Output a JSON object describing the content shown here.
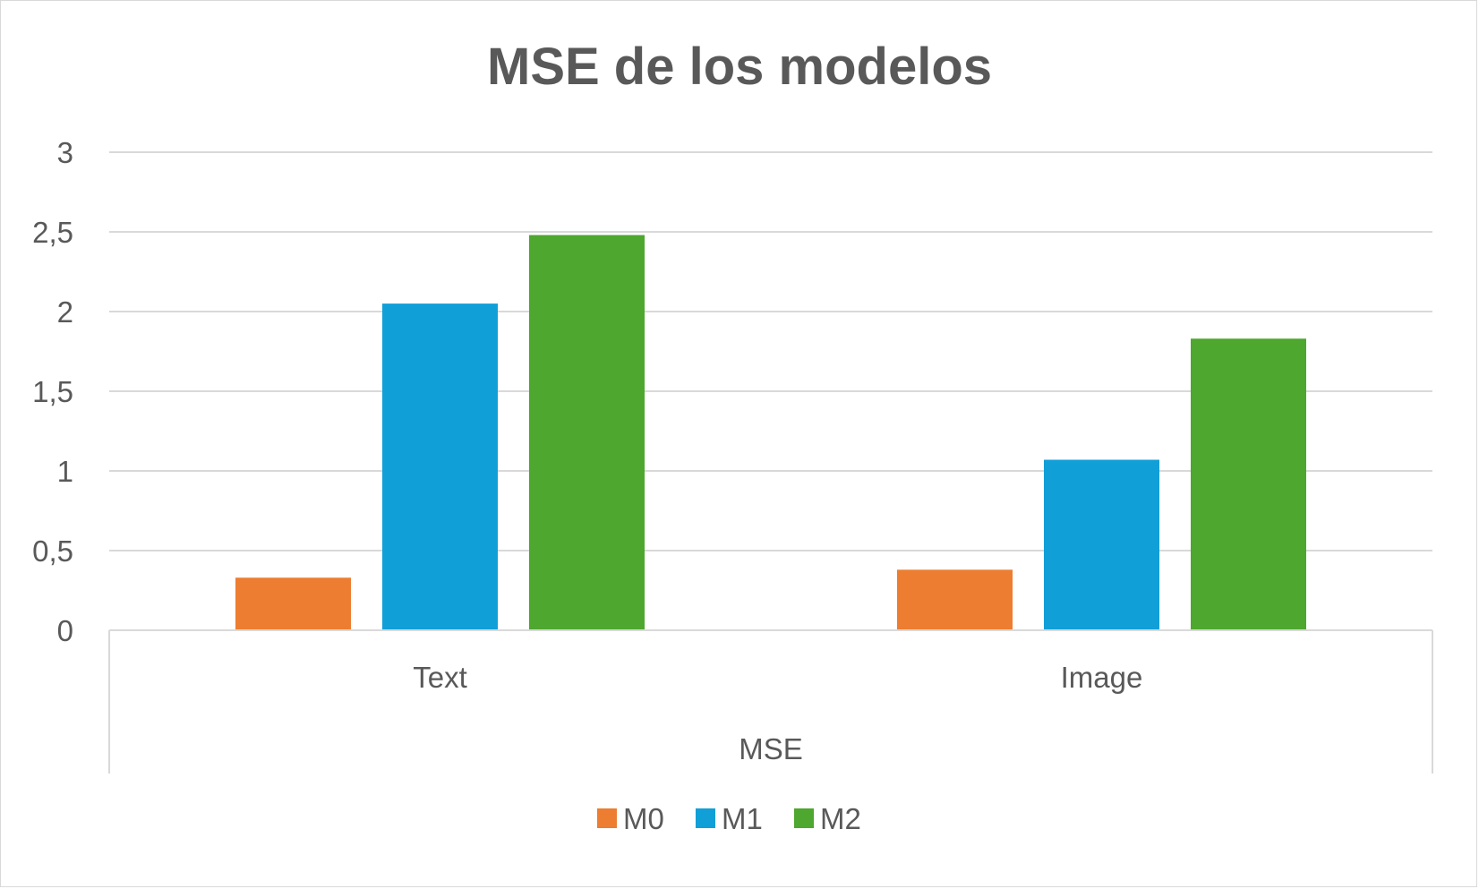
{
  "chart_data": {
    "type": "bar",
    "title": "MSE de los modelos",
    "group_label": "MSE",
    "categories": [
      "Text",
      "Image"
    ],
    "series": [
      {
        "name": "M0",
        "color": "#ED7D31",
        "values": [
          0.33,
          0.38
        ]
      },
      {
        "name": "M1",
        "color": "#119FD8",
        "values": [
          2.05,
          1.07
        ]
      },
      {
        "name": "M2",
        "color": "#4EA72E",
        "values": [
          2.48,
          1.83
        ]
      }
    ],
    "ylim": [
      0,
      3
    ],
    "yticks": [
      {
        "value": 0,
        "label": "0"
      },
      {
        "value": 0.5,
        "label": "0,5"
      },
      {
        "value": 1,
        "label": "1"
      },
      {
        "value": 1.5,
        "label": "1,5"
      },
      {
        "value": 2,
        "label": "2"
      },
      {
        "value": 2.5,
        "label": "2,5"
      },
      {
        "value": 3,
        "label": "3"
      }
    ],
    "grid": true,
    "legend_position": "bottom"
  }
}
